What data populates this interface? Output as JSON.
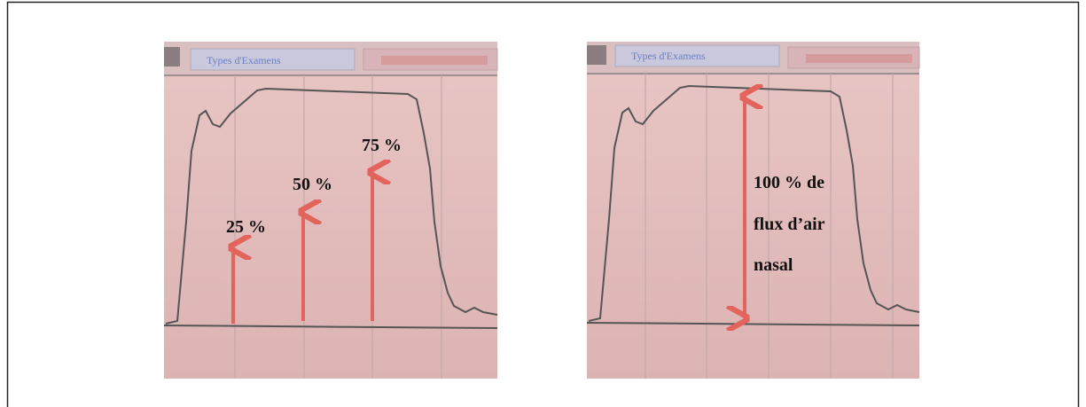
{
  "left_panel": {
    "tab": "Types d'Examens",
    "labels": [
      "25 %",
      "50 %",
      "75 %"
    ]
  },
  "right_panel": {
    "tab": "Types d'Examens",
    "label_lines": [
      "100 % de",
      "flux d’air",
      "nasal"
    ]
  }
}
